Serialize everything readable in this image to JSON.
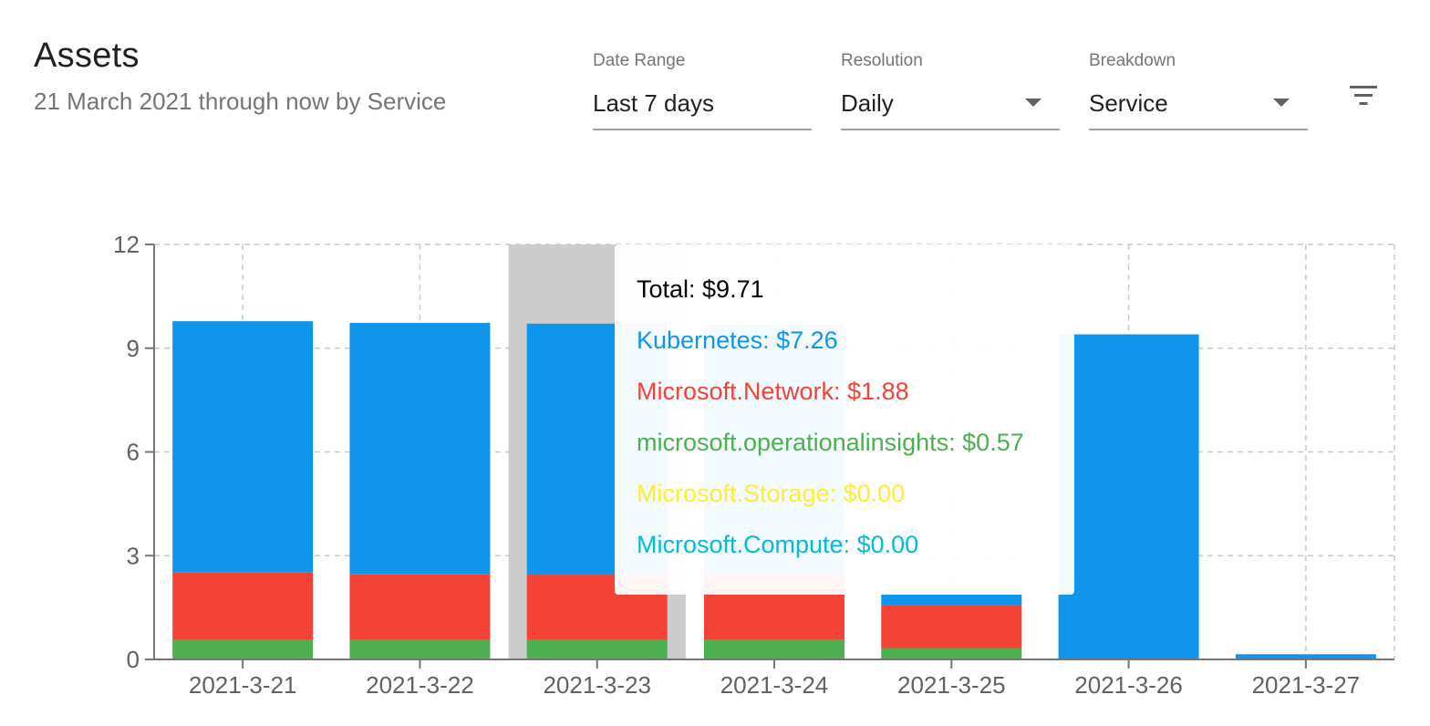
{
  "header": {
    "title": "Assets",
    "subtitle": "21 March 2021 through now by Service"
  },
  "controls": {
    "date_range": {
      "label": "Date Range",
      "value": "Last 7 days"
    },
    "resolution": {
      "label": "Resolution",
      "value": "Daily"
    },
    "breakdown": {
      "label": "Breakdown",
      "value": "Service"
    },
    "filter_icon": "filter-list-icon"
  },
  "colors": {
    "Kubernetes": "#0f95eb",
    "Microsoft.Network": "#f44336",
    "microsoft.operationalinsights": "#4caf50",
    "Microsoft.Storage": "#ffeb3b",
    "Microsoft.Compute": "#00bcd4",
    "highlight": "#cccccc",
    "grid": "#c9c9c9",
    "axis": "#757575"
  },
  "chart_data": {
    "type": "bar",
    "stacked": true,
    "categories": [
      "2021-3-21",
      "2021-3-22",
      "2021-3-23",
      "2021-3-24",
      "2021-3-25",
      "2021-3-26",
      "2021-3-27"
    ],
    "series": [
      {
        "name": "microsoft.operationalinsights",
        "values": [
          0.57,
          0.57,
          0.57,
          0.57,
          0.33,
          0,
          0
        ]
      },
      {
        "name": "Microsoft.Network",
        "values": [
          1.94,
          1.89,
          1.88,
          1.9,
          1.25,
          0,
          0
        ]
      },
      {
        "name": "Kubernetes",
        "values": [
          7.27,
          7.27,
          7.26,
          7.2,
          0.3,
          9.4,
          0.15
        ]
      }
    ],
    "ylim": [
      0,
      12
    ],
    "yticks": [
      0,
      3,
      6,
      9,
      12
    ],
    "grid": true,
    "highlighted_category": "2021-3-23",
    "tooltip": {
      "total": "Total: $9.71",
      "items": [
        {
          "text": "Kubernetes: $7.26",
          "series": "Kubernetes"
        },
        {
          "text": "Microsoft.Network: $1.88",
          "series": "Microsoft.Network"
        },
        {
          "text": "microsoft.operationalinsights: $0.57",
          "series": "microsoft.operationalinsights"
        },
        {
          "text": "Microsoft.Storage: $0.00",
          "series": "Microsoft.Storage"
        },
        {
          "text": "Microsoft.Compute: $0.00",
          "series": "Microsoft.Compute"
        }
      ]
    }
  }
}
